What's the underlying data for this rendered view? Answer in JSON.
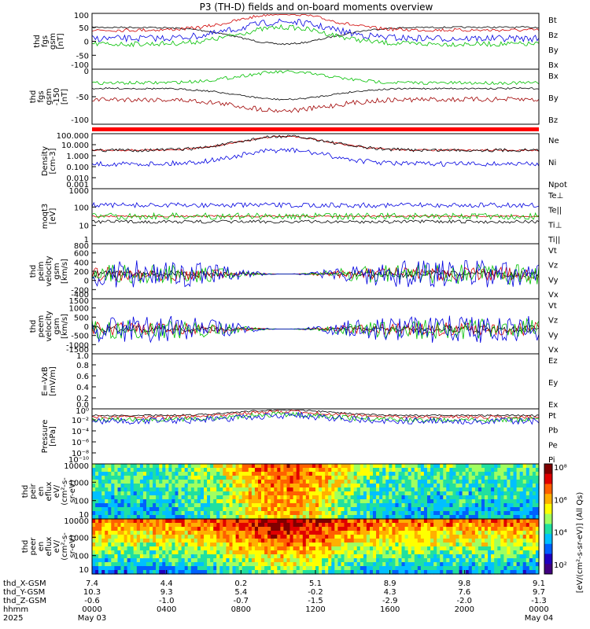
{
  "title": "P3 (TH-D) fields and on-board moments overview",
  "chart_data": [
    {
      "type": "line",
      "id": "fgs_gsm",
      "ylabel": [
        "thd",
        "fgs",
        "gsm",
        "[nT]"
      ],
      "ylim": [
        -100,
        100
      ],
      "ticks": [
        "100",
        "50",
        "0",
        "-50",
        "-100"
      ],
      "legend": [
        {
          "name": "Bt",
          "color": "#000000"
        },
        {
          "name": "Bz",
          "color": "#d00000"
        },
        {
          "name": "By",
          "color": "#00c000"
        },
        {
          "name": "Bx",
          "color": "#0000e0"
        }
      ]
    },
    {
      "type": "line",
      "id": "fgs_gsm_clip",
      "ylabel": [
        "thd",
        "fgs",
        "gsm",
        "-150",
        "[nT]"
      ],
      "ylim": [
        -120,
        20
      ],
      "ticks": [
        "0",
        "-50",
        "-100"
      ],
      "legend": [
        {
          "name": "Bx",
          "color": "#000000"
        },
        {
          "name": "By",
          "color": "#00c000"
        },
        {
          "name": "Bz",
          "color": "#a00000"
        }
      ]
    },
    {
      "type": "line",
      "id": "density",
      "scale": "log",
      "ylabel": [
        "Density",
        "[cm-3]"
      ],
      "ticks": [
        "100.000",
        "10.000",
        "1.000",
        "0.100",
        "0.010",
        "0.001"
      ],
      "legend": [
        {
          "name": "Ne",
          "color": "#d00000"
        },
        {
          "name": "Ni",
          "color": "#000000"
        },
        {
          "name": "Npot",
          "color": "#0000e0"
        }
      ]
    },
    {
      "type": "line",
      "id": "temperature",
      "scale": "log",
      "ylabel": [
        "moqt3",
        "[eV]"
      ],
      "ticks": [
        "1000",
        "100",
        "10",
        "1"
      ],
      "legend": [
        {
          "name": "Te⊥",
          "color": "#d00000"
        },
        {
          "name": "Te||",
          "color": "#000000"
        },
        {
          "name": "Ti⊥",
          "color": "#0000e0"
        },
        {
          "name": "Ti||",
          "color": "#00c000"
        }
      ]
    },
    {
      "type": "line",
      "id": "peim_velocity",
      "ylabel": [
        "thd",
        "peim",
        "velocity",
        "gsm",
        "[km/s]"
      ],
      "ylim": [
        -400,
        800
      ],
      "ticks": [
        "800",
        "600",
        "400",
        "200",
        "0",
        "-200",
        "-400"
      ],
      "legend": [
        {
          "name": "Vt",
          "color": "#000000"
        },
        {
          "name": "Vz",
          "color": "#d00000"
        },
        {
          "name": "Vy",
          "color": "#00c000"
        },
        {
          "name": "Vx",
          "color": "#0000e0"
        }
      ]
    },
    {
      "type": "line",
      "id": "peem_velocity",
      "ylabel": [
        "thd",
        "peem",
        "velocity",
        "gsm",
        "[km/s]"
      ],
      "ylim": [
        -1500,
        1500
      ],
      "ticks": [
        "1500",
        "1000",
        "500",
        "0",
        "-500",
        "-1000",
        "-1500"
      ],
      "legend": [
        {
          "name": "Vt",
          "color": "#000000"
        },
        {
          "name": "Vz",
          "color": "#d00000"
        },
        {
          "name": "Vy",
          "color": "#00c000"
        },
        {
          "name": "Vx",
          "color": "#0000e0"
        }
      ]
    },
    {
      "type": "line",
      "id": "efield",
      "ylabel": [
        "E=-VxB",
        "[mV/m]"
      ],
      "ylim": [
        0,
        1
      ],
      "ticks": [
        "1.0",
        "0.8",
        "0.6",
        "0.4",
        "0.2",
        "0.0"
      ],
      "legend": [
        {
          "name": "Ez",
          "color": "#d00000"
        },
        {
          "name": "Ey",
          "color": "#00c000"
        },
        {
          "name": "Ex",
          "color": "#0000e0"
        }
      ]
    },
    {
      "type": "line",
      "id": "pressure",
      "scale": "log",
      "ylabel": [
        "Pressure",
        "[nPa]"
      ],
      "ticks": [
        "10⁰",
        "10⁻²",
        "10⁻⁴",
        "10⁻⁶",
        "10⁻⁸",
        "10⁻¹⁰"
      ],
      "legend": [
        {
          "name": "Pt",
          "color": "#000000"
        },
        {
          "name": "Pb",
          "color": "#d00000"
        },
        {
          "name": "Pe",
          "color": "#00c000"
        },
        {
          "name": "Pi",
          "color": "#0000e0"
        }
      ]
    },
    {
      "type": "heatmap",
      "id": "peir_eflux",
      "ylabel": [
        "thd",
        "peir",
        "en",
        "eflux",
        "eV/",
        "(cm²-s-",
        "sr-eV)"
      ],
      "ticks": [
        "10000",
        "1000",
        "100",
        "10"
      ]
    },
    {
      "type": "heatmap",
      "id": "peer_eflux",
      "ylabel": [
        "thd",
        "peer",
        "en",
        "eflux",
        "eV/",
        "(cm²-s-",
        "sr-eV)"
      ],
      "ticks": [
        "10000",
        "1000",
        "100",
        "10"
      ]
    }
  ],
  "colorbar": {
    "label": "[eV/(cm²-s-sr-eV)] (All Qs)",
    "ticks": [
      "10⁸",
      "10⁶",
      "10⁴",
      "10²"
    ],
    "colors": [
      "#800000",
      "#e00000",
      "#ff6000",
      "#ffb000",
      "#ffff00",
      "#a0ff60",
      "#20e0a0",
      "#00c0ff",
      "#0060ff",
      "#2000c0",
      "#400080"
    ]
  },
  "xaxis": {
    "rows": [
      {
        "label": "thd_X-GSM",
        "values": [
          "7.4",
          "4.4",
          "0.2",
          "5.1",
          "8.9",
          "9.8",
          "9.1"
        ]
      },
      {
        "label": "thd_Y-GSM",
        "values": [
          "10.3",
          "9.3",
          "5.4",
          "-0.2",
          "4.3",
          "7.6",
          "9.7"
        ]
      },
      {
        "label": "thd_Z-GSM",
        "values": [
          "-0.6",
          "-1.0",
          "-0.7",
          "-1.5",
          "-2.9",
          "-2.0",
          "-1.3"
        ]
      },
      {
        "label": "hhmm",
        "values": [
          "0000",
          "0400",
          "0800",
          "1200",
          "1600",
          "2000",
          "0000"
        ]
      },
      {
        "label": "2025",
        "values": [
          "May 03",
          "",
          "",
          "",
          "",
          "",
          "May 04"
        ]
      }
    ]
  }
}
